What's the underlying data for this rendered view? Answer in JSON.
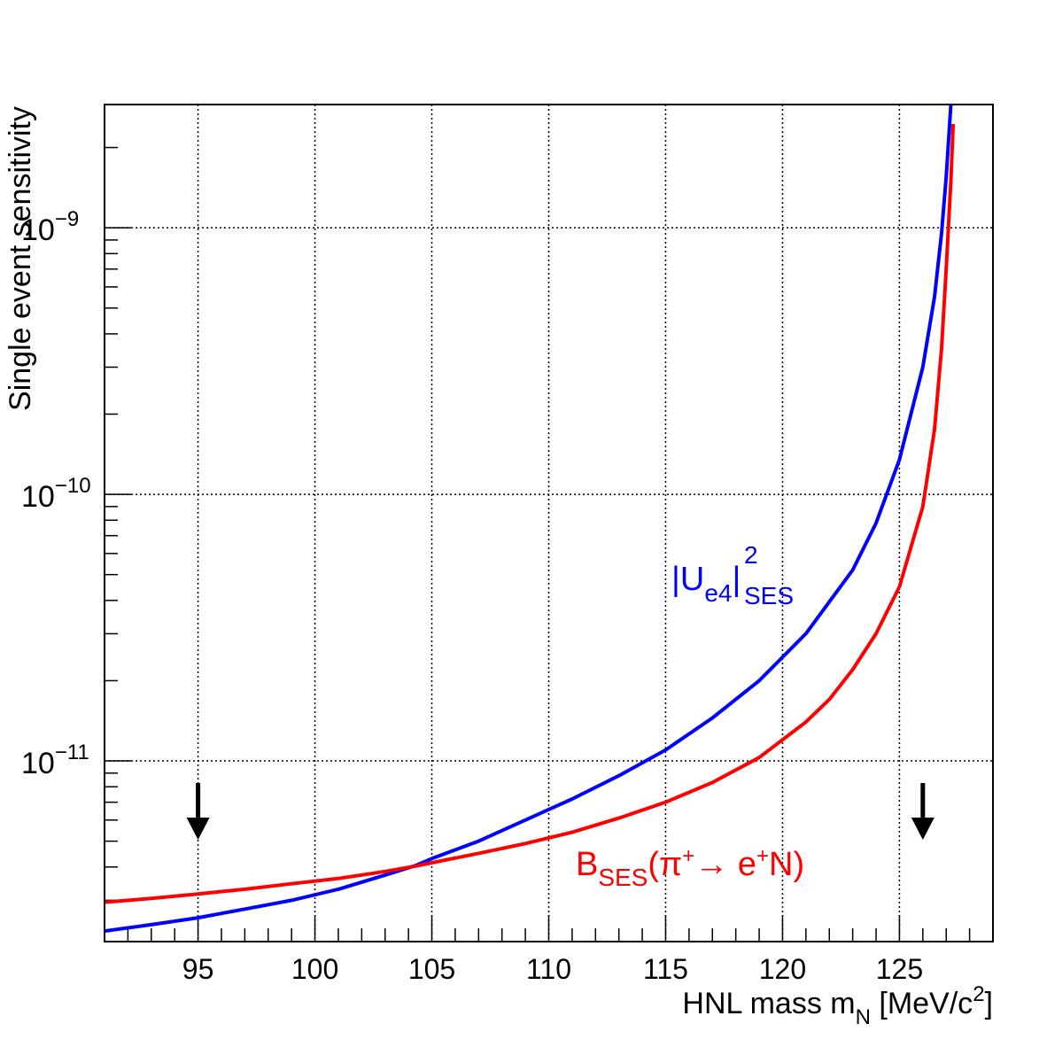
{
  "chart_data": {
    "type": "line",
    "title": "",
    "xlabel": {
      "main": "HNL mass m",
      "sub": "N",
      "tail": " [MeV/c",
      "sup": "2",
      "close": "]"
    },
    "ylabel": "Single event sensitivity",
    "x_range": [
      91,
      129
    ],
    "y_range_log": [
      2.1e-12,
      2.9e-09
    ],
    "y_scale": "log",
    "grid": true,
    "x_ticks": [
      {
        "value": 95,
        "label": "95"
      },
      {
        "value": 100,
        "label": "100"
      },
      {
        "value": 105,
        "label": "105"
      },
      {
        "value": 110,
        "label": "110"
      },
      {
        "value": 115,
        "label": "115"
      },
      {
        "value": 120,
        "label": "120"
      },
      {
        "value": 125,
        "label": "125"
      }
    ],
    "y_ticks": [
      {
        "value": 1e-11,
        "base": "10",
        "exp": "−11"
      },
      {
        "value": 1e-10,
        "base": "10",
        "exp": "−10"
      },
      {
        "value": 1e-09,
        "base": "10",
        "exp": "−9"
      }
    ],
    "series": [
      {
        "name": "|U_e4|^2_SES",
        "color": "#0000ff",
        "label": {
          "pre": "|U",
          "sub1": "e4",
          "mid": "|",
          "sup": "2",
          "sub2": "SES"
        },
        "x": [
          91,
          93,
          95,
          97,
          99,
          101,
          103,
          104.3,
          105,
          107,
          109,
          111,
          113,
          115,
          117,
          119,
          121,
          123,
          124,
          125,
          126,
          126.5,
          126.8,
          127,
          127.2
        ],
        "y": [
          2.3e-12,
          2.43e-12,
          2.58e-12,
          2.78e-12,
          3e-12,
          3.3e-12,
          3.73e-12,
          4.05e-12,
          4.3e-12,
          5e-12,
          6e-12,
          7.2e-12,
          8.8e-12,
          1.1e-11,
          1.45e-11,
          2e-11,
          3e-11,
          5.2e-11,
          7.8e-11,
          1.35e-10,
          3e-10,
          5.5e-10,
          9.5e-10,
          1.55e-09,
          2.9e-09
        ]
      },
      {
        "name": "B_SES(π+→ e+N)",
        "color": "#ff0000",
        "label": {
          "pre": "B",
          "sub1": "SES",
          "mid": "(π",
          "sup1": "+",
          "arrow": "→ e",
          "sup2": "+",
          "tail": "N)"
        },
        "x": [
          91,
          93,
          95,
          97,
          99,
          101,
          103,
          104.3,
          105,
          107,
          109,
          111,
          113,
          115,
          117,
          119,
          121,
          122,
          123,
          124,
          125,
          126,
          126.5,
          126.8,
          127,
          127.2,
          127.3
        ],
        "y": [
          2.95e-12,
          3.05e-12,
          3.17e-12,
          3.3e-12,
          3.46e-12,
          3.62e-12,
          3.85e-12,
          4.03e-12,
          4.15e-12,
          4.5e-12,
          4.9e-12,
          5.4e-12,
          6.1e-12,
          7e-12,
          8.3e-12,
          1.03e-11,
          1.4e-11,
          1.7e-11,
          2.2e-11,
          3e-11,
          4.5e-11,
          9e-11,
          1.75e-10,
          3.5e-10,
          7e-10,
          1.5e-09,
          2.45e-09
        ]
      }
    ],
    "annotations": [
      {
        "type": "arrow-down",
        "x": 95
      },
      {
        "type": "arrow-down",
        "x": 126
      }
    ]
  }
}
